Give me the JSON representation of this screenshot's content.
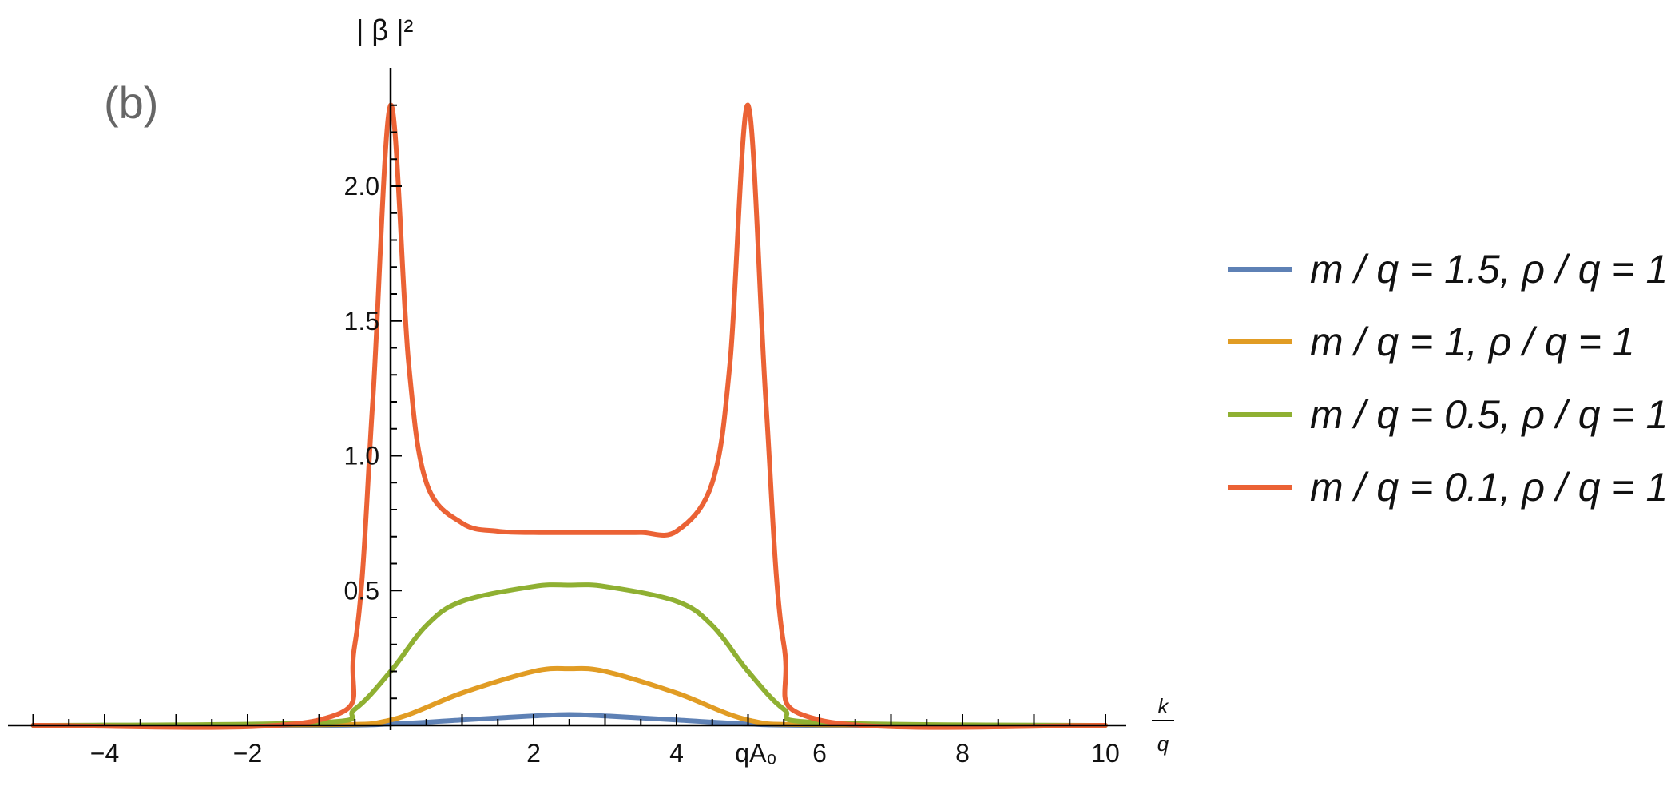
{
  "chart_data": {
    "type": "line",
    "panel_label": "(b)",
    "ylabel": "| β |²",
    "xlabel_num": "k",
    "xlabel_den": "q",
    "xlim": [
      -5,
      10.2
    ],
    "ylim": [
      0,
      2.4
    ],
    "x_ticks": [
      -4,
      -2,
      2,
      4,
      6,
      8,
      10
    ],
    "x_tick_labels": [
      "−4",
      "−2",
      "2",
      "4",
      "6",
      "8",
      "10"
    ],
    "x_special_tick": {
      "x": 5,
      "label": "qA₀"
    },
    "y_ticks": [
      0.5,
      1.0,
      1.5,
      2.0
    ],
    "y_tick_labels": [
      "0.5",
      "1.0",
      "1.5",
      "2.0"
    ],
    "legend_position": "right",
    "series": [
      {
        "name": "m / q = 1.5,  ρ / q = 1",
        "color": "#5E81B5",
        "x": [
          -5,
          -1,
          0,
          1,
          2,
          2.5,
          3,
          4,
          5,
          6,
          10
        ],
        "y": [
          0,
          0,
          0.005,
          0.02,
          0.035,
          0.04,
          0.035,
          0.02,
          0.005,
          0,
          0
        ]
      },
      {
        "name": "m / q = 1,     ρ / q = 1",
        "color": "#E19C24",
        "x": [
          -5,
          -1,
          0,
          1,
          2,
          2.5,
          3,
          4,
          5,
          6,
          10
        ],
        "y": [
          0,
          0.002,
          0.02,
          0.12,
          0.2,
          0.21,
          0.2,
          0.12,
          0.02,
          0.002,
          0
        ]
      },
      {
        "name": "m / q = 0.5,  ρ / q = 1",
        "color": "#8FB032",
        "x": [
          -5,
          -1,
          -0.5,
          0,
          0.5,
          1,
          2,
          2.5,
          3,
          4,
          4.5,
          5,
          5.5,
          6,
          10
        ],
        "y": [
          0,
          0.01,
          0.06,
          0.2,
          0.37,
          0.46,
          0.515,
          0.52,
          0.515,
          0.46,
          0.37,
          0.2,
          0.06,
          0.01,
          0
        ]
      },
      {
        "name": "m / q = 0.1,  ρ / q = 1",
        "color": "#EB6235",
        "x": [
          -5,
          -1,
          -0.5,
          -0.25,
          0,
          0.25,
          0.5,
          1,
          1.5,
          2,
          2.5,
          3,
          3.5,
          4,
          4.5,
          4.75,
          5,
          5.25,
          5.5,
          6,
          10
        ],
        "y": [
          0,
          0.02,
          0.3,
          1.2,
          2.3,
          1.35,
          0.9,
          0.75,
          0.72,
          0.715,
          0.715,
          0.715,
          0.715,
          0.72,
          0.9,
          1.35,
          2.3,
          1.2,
          0.3,
          0.02,
          0
        ]
      }
    ]
  }
}
